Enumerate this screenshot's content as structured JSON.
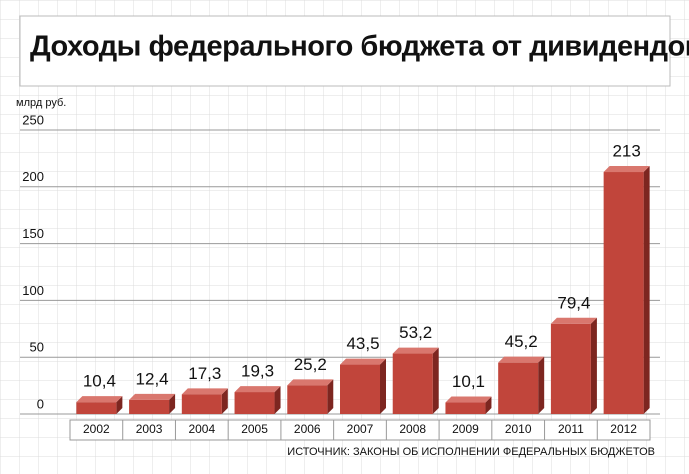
{
  "chart_data": {
    "type": "bar",
    "title": "Доходы федерального бюджета от дивидендов",
    "y_axis_label": "млрд руб.",
    "source": "ИСТОЧНИК: ЗАКОНЫ ОБ ИСПОЛНЕНИИ ФЕДЕРАЛЬНЫХ БЮДЖЕТОВ",
    "categories": [
      "2002",
      "2003",
      "2004",
      "2005",
      "2006",
      "2007",
      "2008",
      "2009",
      "2010",
      "2011",
      "2012"
    ],
    "values": [
      10.4,
      12.4,
      17.3,
      19.3,
      25.2,
      43.5,
      53.2,
      10.1,
      45.2,
      79.4,
      213
    ],
    "value_labels": [
      "10,4",
      "12,4",
      "17,3",
      "19,3",
      "25,2",
      "43,5",
      "53,2",
      "10,1",
      "45,2",
      "79,4",
      "213"
    ],
    "color": "#c1453b",
    "ylim": [
      0,
      250
    ],
    "yticks": [
      0,
      50,
      100,
      150,
      200,
      250
    ],
    "grid": true
  }
}
